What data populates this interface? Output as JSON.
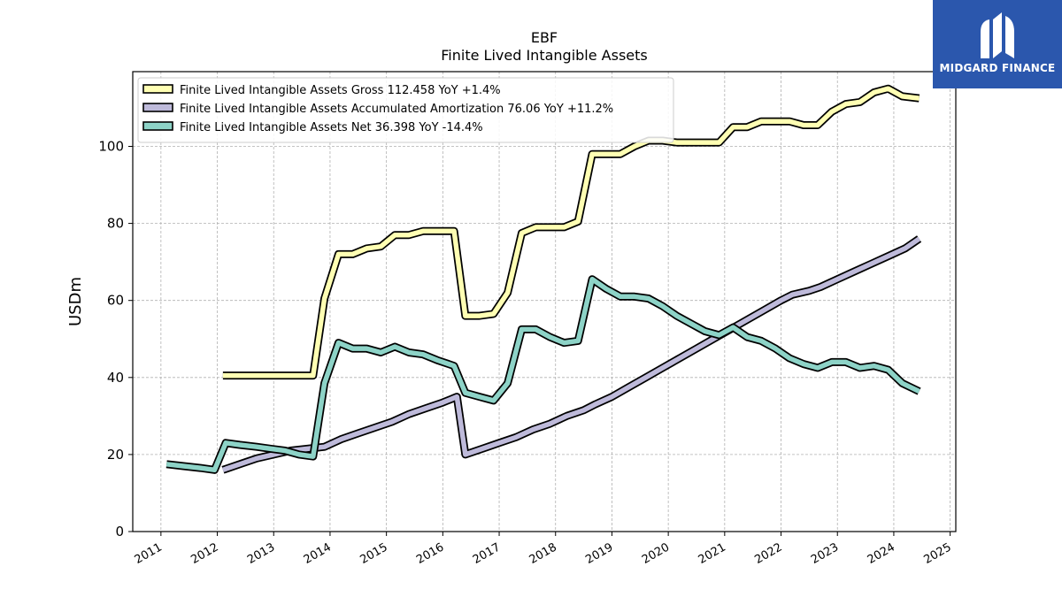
{
  "chart_data": {
    "type": "line",
    "title": "EBF",
    "subtitle": "Finite Lived Intangible Assets",
    "ylabel": "USDm",
    "xlabel": "",
    "ylim": [
      0,
      119.4
    ],
    "xlim": [
      2010.5,
      2025.1
    ],
    "yticks": [
      0,
      20,
      40,
      60,
      80,
      100
    ],
    "xticks": [
      "2011",
      "2012",
      "2013",
      "2014",
      "2015",
      "2016",
      "2017",
      "2018",
      "2019",
      "2020",
      "2021",
      "2022",
      "2023",
      "2024",
      "2025"
    ],
    "grid": true,
    "legend_position": "top-left",
    "series": [
      {
        "name": "Finite Lived Intangible Assets Gross  112.458 YoY +1.4%",
        "color": "#ffffb3",
        "x": [
          2012.1,
          2013.7,
          2013.9,
          2014.15,
          2014.4,
          2014.65,
          2014.9,
          2015.15,
          2015.4,
          2015.65,
          2015.9,
          2016.2,
          2016.4,
          2016.65,
          2016.9,
          2017.15,
          2017.4,
          2017.65,
          2017.9,
          2018.15,
          2018.4,
          2018.65,
          2018.9,
          2019.15,
          2019.4,
          2019.65,
          2019.9,
          2020.15,
          2020.4,
          2020.65,
          2020.9,
          2021.15,
          2021.4,
          2021.65,
          2021.9,
          2022.15,
          2022.4,
          2022.65,
          2022.9,
          2023.15,
          2023.4,
          2023.65,
          2023.9,
          2024.15,
          2024.45
        ],
        "y": [
          40.5,
          40.5,
          60.5,
          72.0,
          72.0,
          73.5,
          74.0,
          77.0,
          77.0,
          78.0,
          78.0,
          78.0,
          56.0,
          56.0,
          56.5,
          62.0,
          77.5,
          79.0,
          79.0,
          79.0,
          80.5,
          98.0,
          98.0,
          98.0,
          100.0,
          101.5,
          101.5,
          101.0,
          101.0,
          101.0,
          101.0,
          105.0,
          105.0,
          106.5,
          106.5,
          106.5,
          105.5,
          105.5,
          109.0,
          111.0,
          111.5,
          114.0,
          115.0,
          113.0,
          112.5
        ]
      },
      {
        "name": "Finite Lived Intangible Assets Accumulated Amortization  76.06 YoY +11.2%",
        "color": "#bebada",
        "x": [
          2012.1,
          2012.4,
          2012.7,
          2013.0,
          2013.3,
          2013.6,
          2013.9,
          2014.2,
          2014.5,
          2014.8,
          2015.1,
          2015.4,
          2015.7,
          2016.0,
          2016.25,
          2016.4,
          2016.7,
          2017.0,
          2017.3,
          2017.6,
          2017.9,
          2018.2,
          2018.5,
          2018.7,
          2019.0,
          2019.3,
          2019.6,
          2019.9,
          2020.2,
          2020.5,
          2020.8,
          2021.1,
          2021.4,
          2021.7,
          2022.0,
          2022.2,
          2022.5,
          2022.7,
          2023.0,
          2023.3,
          2023.6,
          2023.9,
          2024.2,
          2024.45
        ],
        "y": [
          16.0,
          17.5,
          19.0,
          20.0,
          21.0,
          21.5,
          22.0,
          24.0,
          25.5,
          27.0,
          28.5,
          30.5,
          32.0,
          33.5,
          35.0,
          20.0,
          21.5,
          23.0,
          24.5,
          26.5,
          28.0,
          30.0,
          31.5,
          33.0,
          35.0,
          37.5,
          40.0,
          42.5,
          45.0,
          47.5,
          50.0,
          52.5,
          55.0,
          57.5,
          60.0,
          61.5,
          62.5,
          63.5,
          65.5,
          67.5,
          69.5,
          71.5,
          73.5,
          76.0
        ]
      },
      {
        "name": "Finite Lived Intangible Assets Net  36.398 YoY -14.4%",
        "color": "#8dd3c7",
        "x": [
          2011.1,
          2011.4,
          2011.7,
          2011.95,
          2012.15,
          2012.4,
          2012.7,
          2012.95,
          2013.2,
          2013.45,
          2013.7,
          2013.9,
          2014.15,
          2014.4,
          2014.65,
          2014.9,
          2015.15,
          2015.4,
          2015.65,
          2015.9,
          2016.2,
          2016.4,
          2016.65,
          2016.9,
          2017.15,
          2017.4,
          2017.65,
          2017.9,
          2018.15,
          2018.4,
          2018.65,
          2018.9,
          2019.15,
          2019.4,
          2019.65,
          2019.9,
          2020.15,
          2020.4,
          2020.65,
          2020.9,
          2021.15,
          2021.4,
          2021.65,
          2021.9,
          2022.15,
          2022.4,
          2022.65,
          2022.9,
          2023.15,
          2023.4,
          2023.65,
          2023.9,
          2024.15,
          2024.45
        ],
        "y": [
          17.5,
          17.0,
          16.5,
          16.0,
          23.0,
          22.5,
          22.0,
          21.5,
          21.0,
          20.0,
          19.5,
          38.5,
          49.0,
          47.5,
          47.5,
          46.5,
          48.0,
          46.5,
          46.0,
          44.5,
          43.0,
          36.0,
          35.0,
          34.0,
          38.5,
          52.5,
          52.5,
          50.5,
          49.0,
          49.5,
          65.5,
          63.0,
          61.0,
          61.0,
          60.5,
          58.5,
          56.0,
          54.0,
          52.0,
          51.0,
          53.0,
          50.5,
          49.5,
          47.5,
          45.0,
          43.5,
          42.5,
          44.0,
          44.0,
          42.5,
          43.0,
          42.0,
          38.5,
          36.4
        ]
      }
    ]
  },
  "logo": {
    "text": "MIDGARD FINANCE",
    "color": "#2b57ad"
  }
}
